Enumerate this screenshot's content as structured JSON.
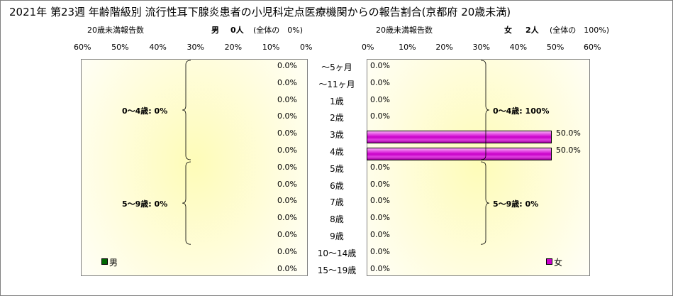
{
  "title": "2021年 第23週 年齢階級別 流行性耳下腺炎患者の小児科定点医療機関からの報告割合(京都府 20歳未満)",
  "left_panel": {
    "sublabel": "20歳未満報告数",
    "sex_label": "男",
    "count_text": "0人",
    "share_text": "(全体の　0%)",
    "legend": "男",
    "legend_color": "#006600"
  },
  "right_panel": {
    "sublabel": "20歳未満報告数",
    "sex_label": "女",
    "count_text": "2人",
    "share_text": "(全体の　100%)",
    "legend": "女",
    "legend_color": "#cc00cc"
  },
  "chart_data": {
    "type": "bar",
    "orientation": "horizontal-butterfly",
    "categories": [
      "～5ヶ月",
      "～11ヶ月",
      "1歳",
      "2歳",
      "3歳",
      "4歳",
      "5歳",
      "6歳",
      "7歳",
      "8歳",
      "9歳",
      "10～14歳",
      "15～19歳"
    ],
    "series": [
      {
        "name": "男",
        "values": [
          0,
          0,
          0,
          0,
          0,
          0,
          0,
          0,
          0,
          0,
          0,
          0,
          0
        ],
        "labels": [
          "0.0%",
          "0.0%",
          "0.0%",
          "0.0%",
          "0.0%",
          "0.0%",
          "0.0%",
          "0.0%",
          "0.0%",
          "0.0%",
          "0.0%",
          "0.0%",
          "0.0%"
        ]
      },
      {
        "name": "女",
        "values": [
          0,
          0,
          0,
          0,
          50,
          50,
          0,
          0,
          0,
          0,
          0,
          0,
          0
        ],
        "labels": [
          "0.0%",
          "0.0%",
          "0.0%",
          "0.0%",
          "50.0%",
          "50.0%",
          "0.0%",
          "0.0%",
          "0.0%",
          "0.0%",
          "0.0%",
          "0.0%",
          "0.0%"
        ]
      }
    ],
    "xlim": [
      0,
      60
    ],
    "ticks": [
      "0%",
      "10%",
      "20%",
      "30%",
      "40%",
      "50%",
      "60%"
    ],
    "groups": {
      "male": [
        {
          "label": "0～4歳: 0%",
          "from": 0,
          "to": 5
        },
        {
          "label": "5～9歳: 0%",
          "from": 6,
          "to": 10
        }
      ],
      "female": [
        {
          "label": "0～4歳: 100%",
          "from": 0,
          "to": 5
        },
        {
          "label": "5～9歳: 0%",
          "from": 6,
          "to": 10
        }
      ]
    }
  }
}
